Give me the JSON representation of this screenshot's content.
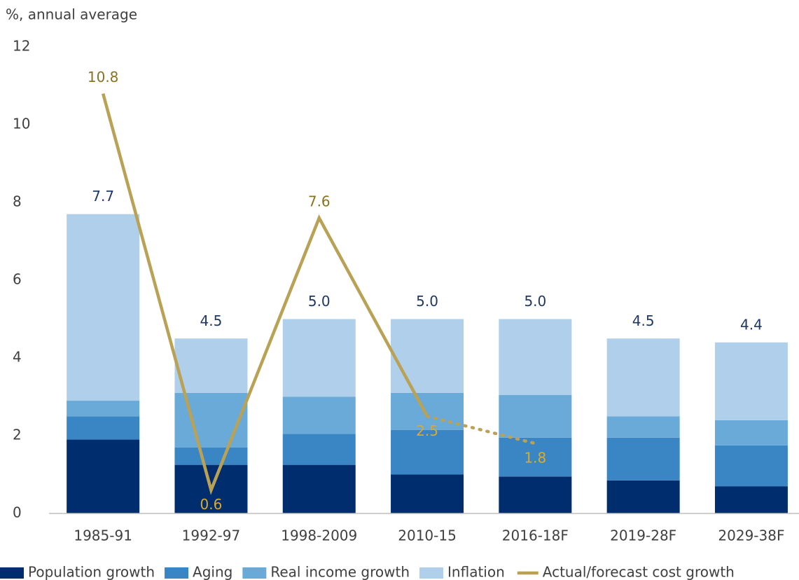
{
  "chart_data": {
    "type": "bar",
    "stacked": true,
    "y_axis_label": "%, annual average",
    "categories": [
      "1985-91",
      "1992-97",
      "1998-2009",
      "2010-15",
      "2016-18F",
      "2019-28F",
      "2029-38F"
    ],
    "series": [
      {
        "name": "Population growth",
        "color": "#002d6e",
        "values": [
          1.9,
          1.25,
          1.25,
          1.0,
          0.95,
          0.85,
          0.7
        ]
      },
      {
        "name": "Aging",
        "color": "#3a86c4",
        "values": [
          0.6,
          0.45,
          0.8,
          1.15,
          1.0,
          1.1,
          1.05
        ]
      },
      {
        "name": "Real income growth",
        "color": "#6aaad9",
        "values": [
          0.4,
          1.4,
          0.95,
          0.95,
          1.1,
          0.55,
          0.65
        ]
      },
      {
        "name": "Inflation",
        "color": "#b0cfea",
        "values": [
          4.8,
          1.4,
          2.0,
          1.9,
          1.95,
          2.0,
          2.0
        ]
      },
      {
        "name": "Actual/forecast cost growth",
        "type": "line",
        "color": "#b9a255",
        "dotted_from": 3,
        "values": [
          10.8,
          0.6,
          7.6,
          2.5,
          1.8,
          null,
          null
        ]
      }
    ],
    "totals": [
      7.7,
      4.5,
      5.0,
      5.0,
      5.0,
      4.5,
      4.4
    ],
    "totals_labels": [
      "7.7",
      "4.5",
      "5.0",
      "5.0",
      "5.0",
      "4.5",
      "4.4"
    ],
    "ylim": [
      0,
      12
    ],
    "yticks": [
      0,
      2,
      4,
      6,
      8,
      10,
      12
    ],
    "grid": false,
    "legend": "bottom"
  }
}
